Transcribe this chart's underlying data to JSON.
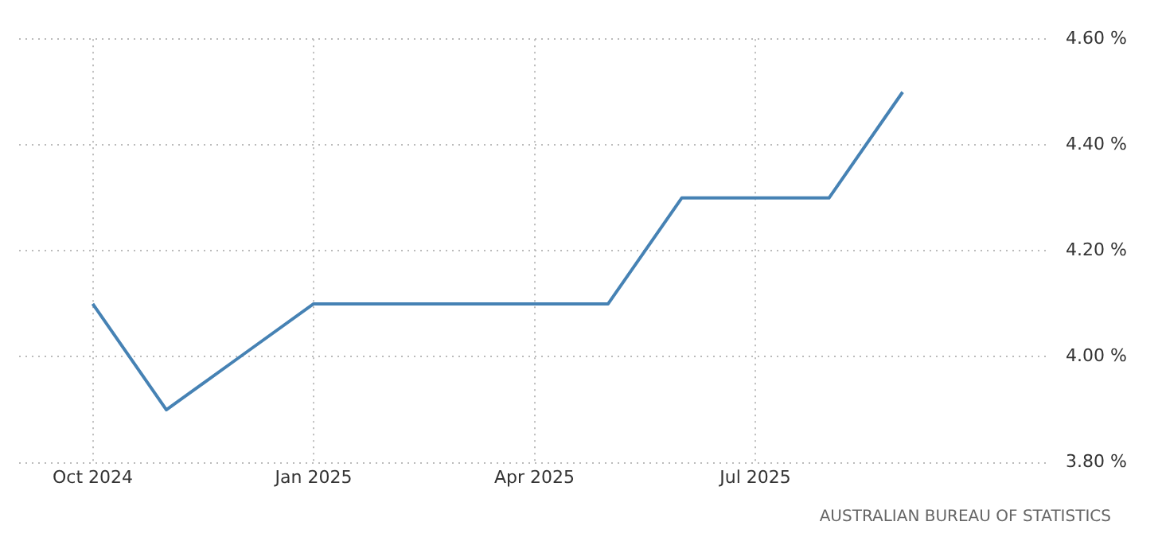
{
  "chart_data": {
    "type": "line",
    "x": [
      "2024-10",
      "2024-11",
      "2024-12",
      "2025-01",
      "2025-02",
      "2025-03",
      "2025-04",
      "2025-05",
      "2025-06",
      "2025-07",
      "2025-08",
      "2025-09"
    ],
    "series": [
      {
        "color": "#4682b4",
        "values": [
          4.1,
          3.9,
          4.0,
          4.1,
          4.1,
          4.1,
          4.1,
          4.1,
          4.3,
          4.3,
          4.3,
          4.5
        ]
      }
    ],
    "xlim": [
      "2024-09",
      "2025-11"
    ],
    "xticks": [
      {
        "value": "2024-10",
        "label": "Oct 2024"
      },
      {
        "value": "2025-01",
        "label": "Jan 2025"
      },
      {
        "value": "2025-04",
        "label": "Apr 2025"
      },
      {
        "value": "2025-07",
        "label": "Jul 2025"
      }
    ],
    "ylim": [
      3.8,
      4.6
    ],
    "yticks": [
      {
        "value": 3.8,
        "label": "3.80 %"
      },
      {
        "value": 4.0,
        "label": "4.00 %"
      },
      {
        "value": 4.2,
        "label": "4.20 %"
      },
      {
        "value": 4.4,
        "label": "4.40 %"
      },
      {
        "value": 4.6,
        "label": "4.60 %"
      }
    ],
    "grid": true,
    "legend": false,
    "marker": "none",
    "line_style": "solid",
    "annotations": [
      "AUSTRALIAN BUREAU OF STATISTICS"
    ]
  }
}
